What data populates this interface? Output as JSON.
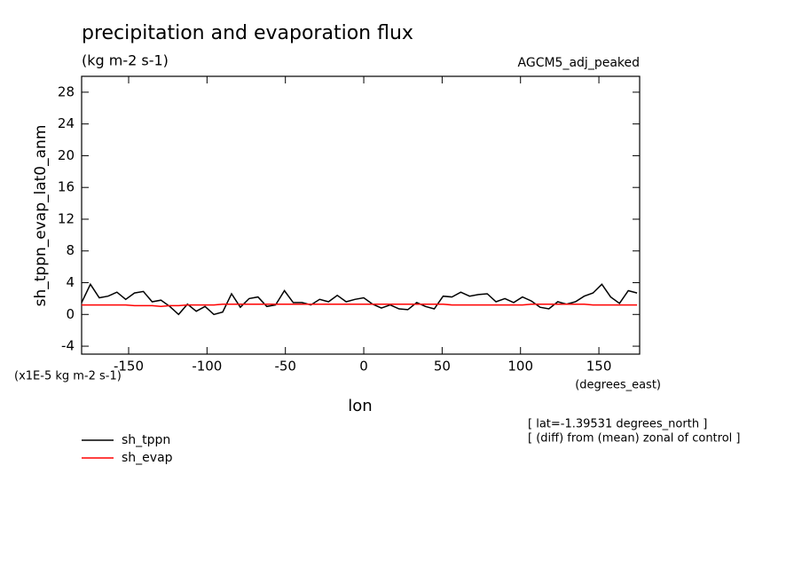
{
  "chart_data": {
    "type": "line",
    "title": "precipitation and evaporation flux",
    "subtitle": "(kg m-2 s-1)",
    "dataset_label": "AGCM5_adj_peaked",
    "y_label": "sh_tppn_evap_lat0_anm",
    "y_units": "(x1E-5 kg m-2 s-1)",
    "x_label": "lon",
    "x_units": "(degrees_east)",
    "annotations": [
      "[ lat=-1.39531 degrees_north ]",
      "[ (diff) from (mean) zonal of control ]"
    ],
    "x": [
      -180,
      -174.375,
      -168.75,
      -163.125,
      -157.5,
      -151.875,
      -146.25,
      -140.625,
      -135,
      -129.375,
      -123.75,
      -118.125,
      -112.5,
      -106.875,
      -101.25,
      -95.625,
      -90,
      -84.375,
      -78.75,
      -73.125,
      -67.5,
      -61.875,
      -56.25,
      -50.625,
      -45,
      -39.375,
      -33.75,
      -28.125,
      -22.5,
      -16.875,
      -11.25,
      -5.625,
      0,
      5.625,
      11.25,
      16.875,
      22.5,
      28.125,
      33.75,
      39.375,
      45,
      50.625,
      56.25,
      61.875,
      67.5,
      73.125,
      78.75,
      84.375,
      90,
      95.625,
      101.25,
      106.875,
      112.5,
      118.125,
      123.75,
      129.375,
      135,
      140.625,
      146.25,
      151.875,
      157.5,
      163.125,
      168.75,
      174.375
    ],
    "series": [
      {
        "name": "sh_tppn",
        "color": "#000000",
        "values": [
          1.5,
          3.8,
          2.1,
          2.3,
          2.8,
          1.9,
          2.7,
          2.9,
          1.6,
          1.8,
          1.0,
          0.0,
          1.3,
          0.4,
          1.0,
          0.0,
          0.3,
          2.6,
          0.9,
          2.0,
          2.2,
          1.0,
          1.2,
          3.0,
          1.5,
          1.5,
          1.2,
          1.9,
          1.6,
          2.4,
          1.6,
          1.9,
          2.1,
          1.3,
          0.8,
          1.2,
          0.7,
          0.6,
          1.5,
          1.0,
          0.7,
          2.3,
          2.2,
          2.8,
          2.3,
          2.5,
          2.6,
          1.6,
          2.0,
          1.5,
          2.2,
          1.7,
          0.9,
          0.7,
          1.6,
          1.3,
          1.6,
          2.3,
          2.7,
          3.8,
          2.2,
          1.4,
          3.0,
          2.7
        ]
      },
      {
        "name": "sh_evap",
        "color": "#ff0000",
        "values": [
          1.2,
          1.2,
          1.2,
          1.2,
          1.2,
          1.2,
          1.1,
          1.1,
          1.1,
          1.0,
          1.1,
          1.1,
          1.2,
          1.2,
          1.2,
          1.2,
          1.3,
          1.3,
          1.3,
          1.3,
          1.3,
          1.3,
          1.3,
          1.3,
          1.3,
          1.3,
          1.3,
          1.3,
          1.3,
          1.3,
          1.3,
          1.3,
          1.3,
          1.3,
          1.3,
          1.3,
          1.3,
          1.3,
          1.3,
          1.3,
          1.3,
          1.3,
          1.2,
          1.2,
          1.2,
          1.2,
          1.2,
          1.2,
          1.2,
          1.2,
          1.2,
          1.3,
          1.3,
          1.3,
          1.3,
          1.3,
          1.3,
          1.3,
          1.2,
          1.2,
          1.2,
          1.2,
          1.2,
          1.2
        ]
      }
    ],
    "xlim": [
      -180,
      176
    ],
    "ylim": [
      -5,
      30
    ],
    "xticks": [
      -150,
      -100,
      -50,
      0,
      50,
      100,
      150
    ],
    "yticks": [
      -4,
      0,
      4,
      8,
      12,
      16,
      20,
      24,
      28
    ],
    "grid": false
  }
}
